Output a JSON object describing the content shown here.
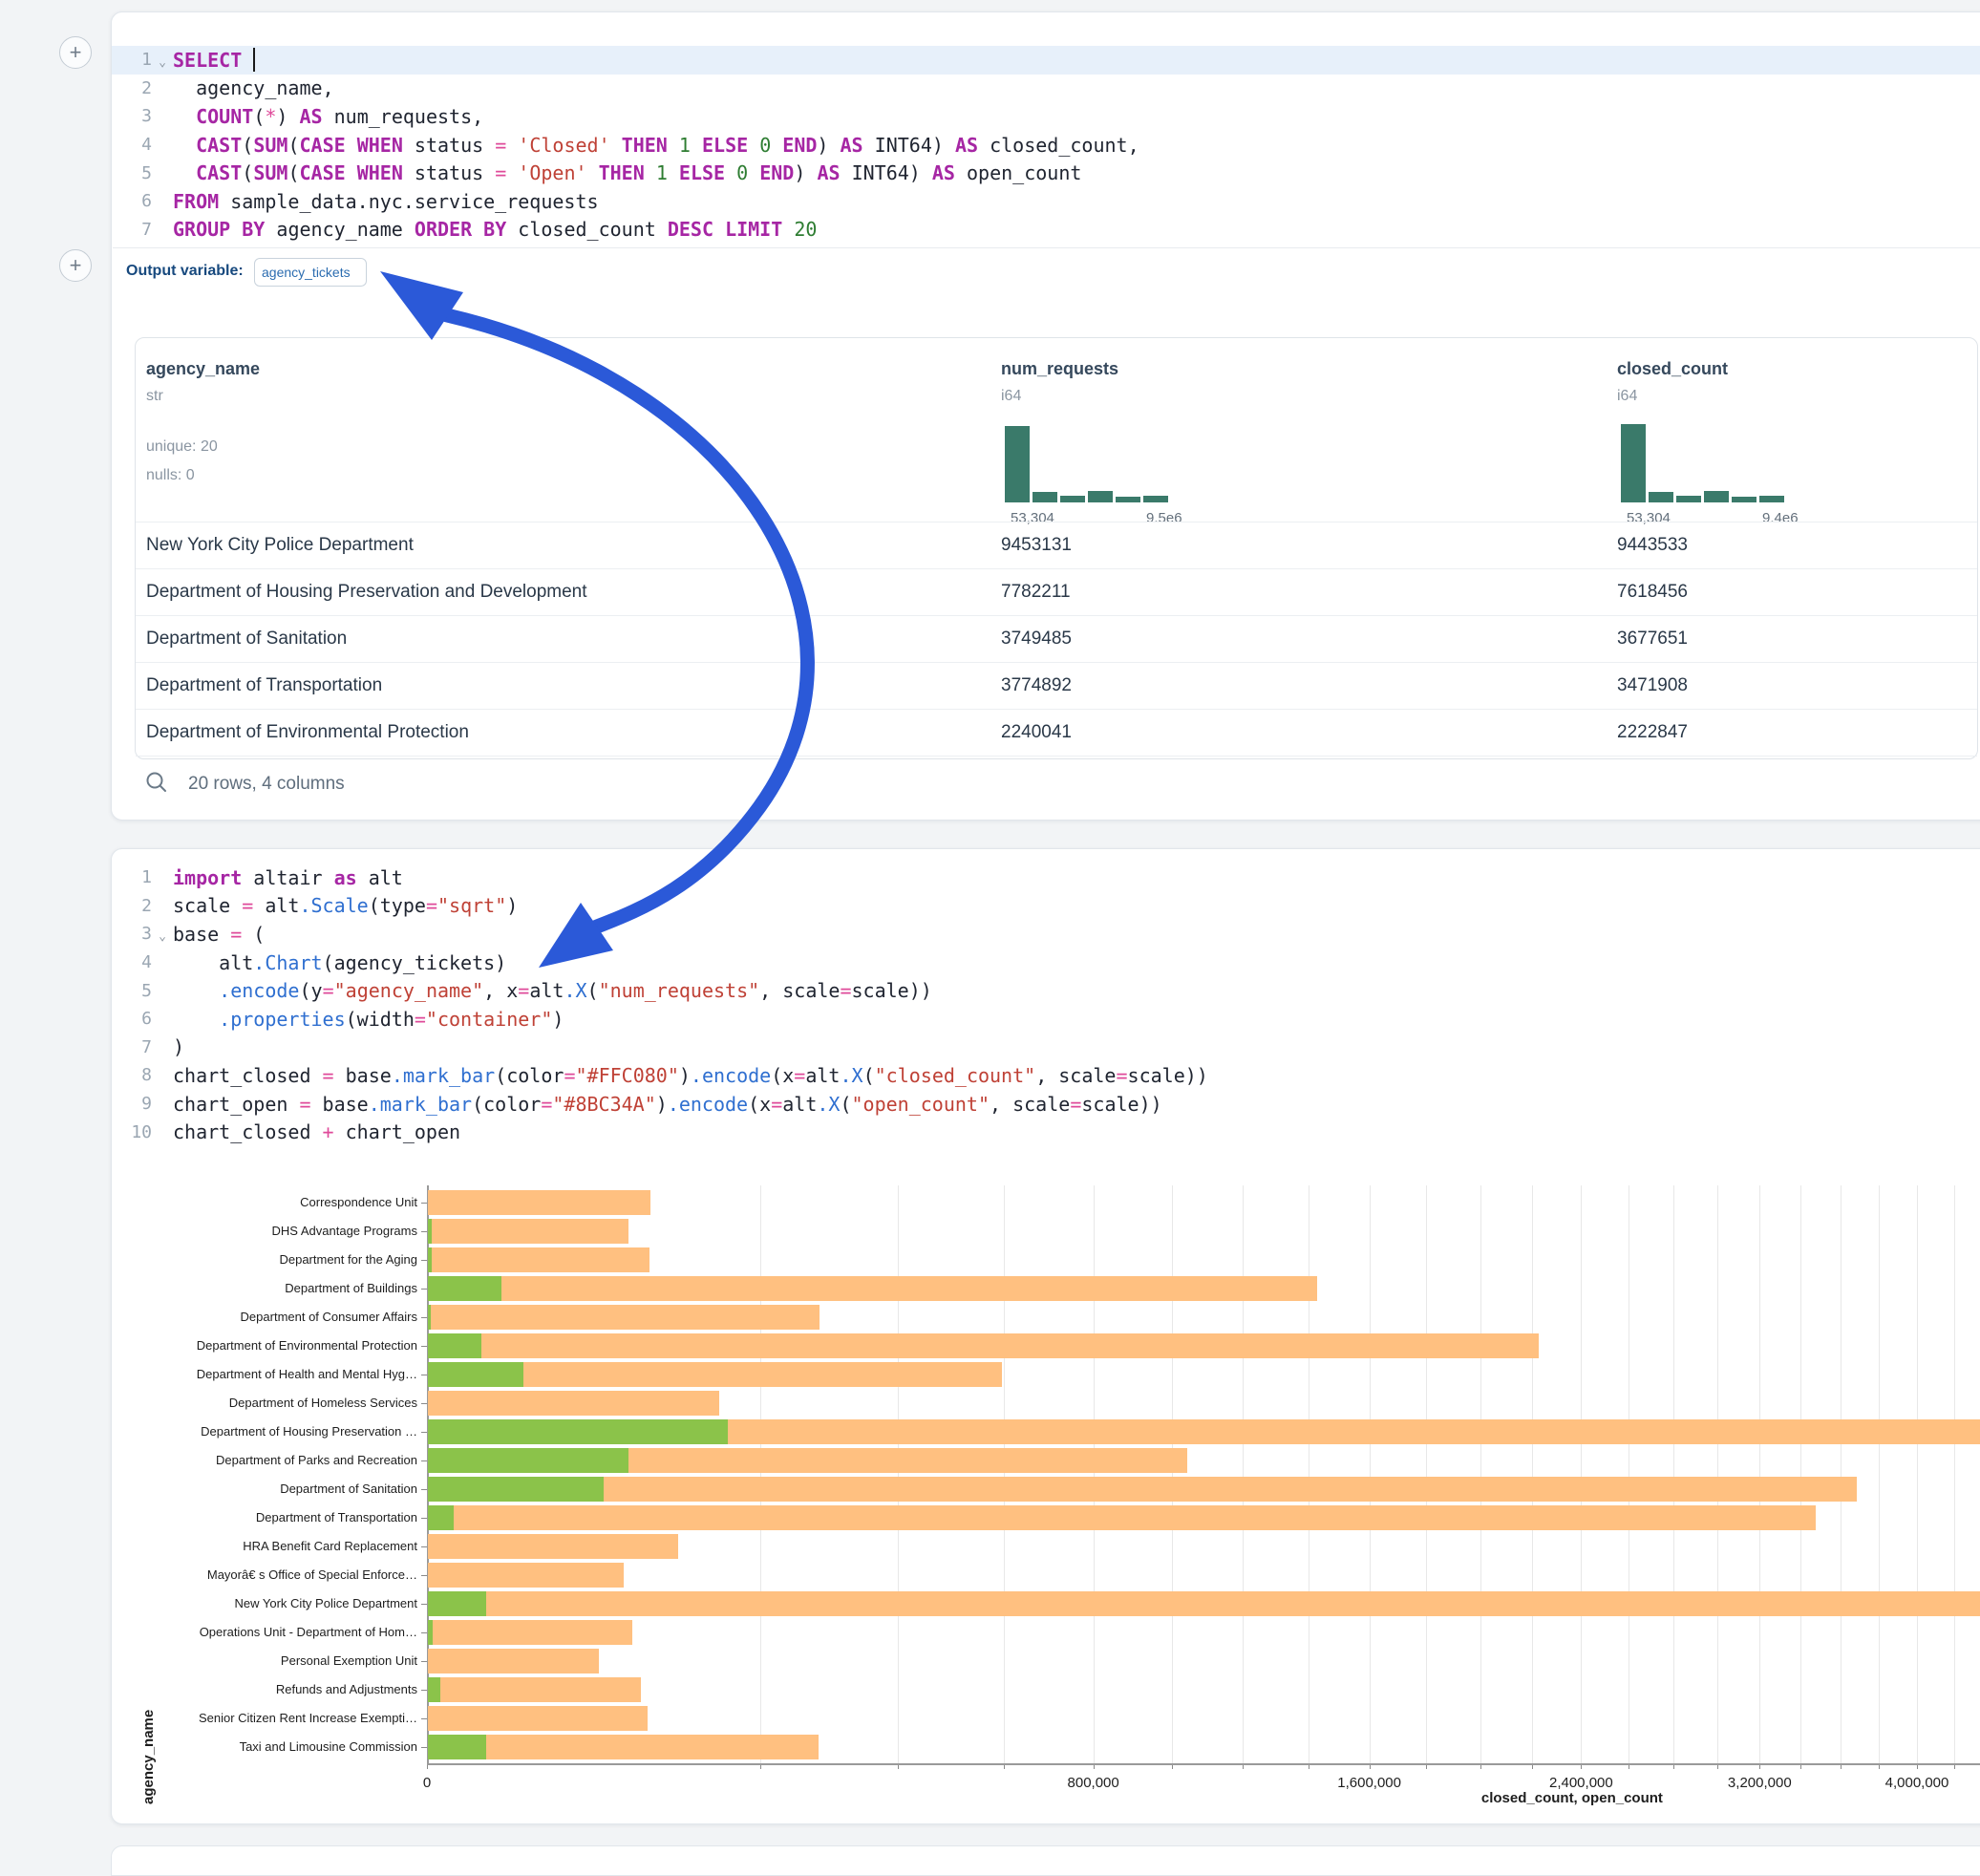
{
  "colors": {
    "keyword": "#a626a4",
    "function": "#2f6fd0",
    "string": "#bf4136",
    "number": "#2e7d32",
    "operator": "#df4a9a",
    "plain": "#1f2430",
    "hist": "#3a7a6a",
    "arrow": "#2b59d8",
    "bar_closed": "#FFC080",
    "bar_open": "#8BC34A"
  },
  "sql_cell": {
    "add_button": "+",
    "lines": [
      {
        "n": "1",
        "fold": "⌄",
        "highlight": true,
        "cursor": true,
        "tokens": [
          [
            "kw",
            "SELECT"
          ],
          [
            "txt",
            " "
          ]
        ]
      },
      {
        "n": "2",
        "tokens": [
          [
            "txt",
            "  agency_name,"
          ]
        ]
      },
      {
        "n": "3",
        "tokens": [
          [
            "txt",
            "  "
          ],
          [
            "kw",
            "COUNT"
          ],
          [
            "txt",
            "("
          ],
          [
            "op",
            "*"
          ],
          [
            "txt",
            ") "
          ],
          [
            "kw",
            "AS"
          ],
          [
            "txt",
            " num_requests,"
          ]
        ]
      },
      {
        "n": "4",
        "tokens": [
          [
            "txt",
            "  "
          ],
          [
            "kw",
            "CAST"
          ],
          [
            "txt",
            "("
          ],
          [
            "kw",
            "SUM"
          ],
          [
            "txt",
            "("
          ],
          [
            "kw",
            "CASE"
          ],
          [
            "txt",
            " "
          ],
          [
            "kw",
            "WHEN"
          ],
          [
            "txt",
            " status "
          ],
          [
            "op",
            "="
          ],
          [
            "txt",
            " "
          ],
          [
            "str",
            "'Closed'"
          ],
          [
            "txt",
            " "
          ],
          [
            "kw",
            "THEN"
          ],
          [
            "txt",
            " "
          ],
          [
            "num",
            "1"
          ],
          [
            "txt",
            " "
          ],
          [
            "kw",
            "ELSE"
          ],
          [
            "txt",
            " "
          ],
          [
            "num",
            "0"
          ],
          [
            "txt",
            " "
          ],
          [
            "kw",
            "END"
          ],
          [
            "txt",
            ") "
          ],
          [
            "kw",
            "AS"
          ],
          [
            "txt",
            " INT64) "
          ],
          [
            "kw",
            "AS"
          ],
          [
            "txt",
            " closed_count,"
          ]
        ]
      },
      {
        "n": "5",
        "tokens": [
          [
            "txt",
            "  "
          ],
          [
            "kw",
            "CAST"
          ],
          [
            "txt",
            "("
          ],
          [
            "kw",
            "SUM"
          ],
          [
            "txt",
            "("
          ],
          [
            "kw",
            "CASE"
          ],
          [
            "txt",
            " "
          ],
          [
            "kw",
            "WHEN"
          ],
          [
            "txt",
            " status "
          ],
          [
            "op",
            "="
          ],
          [
            "txt",
            " "
          ],
          [
            "str",
            "'Open'"
          ],
          [
            "txt",
            " "
          ],
          [
            "kw",
            "THEN"
          ],
          [
            "txt",
            " "
          ],
          [
            "num",
            "1"
          ],
          [
            "txt",
            " "
          ],
          [
            "kw",
            "ELSE"
          ],
          [
            "txt",
            " "
          ],
          [
            "num",
            "0"
          ],
          [
            "txt",
            " "
          ],
          [
            "kw",
            "END"
          ],
          [
            "txt",
            ") "
          ],
          [
            "kw",
            "AS"
          ],
          [
            "txt",
            " INT64) "
          ],
          [
            "kw",
            "AS"
          ],
          [
            "txt",
            " open_count"
          ]
        ]
      },
      {
        "n": "6",
        "tokens": [
          [
            "kw",
            "FROM"
          ],
          [
            "txt",
            " sample_data.nyc.service_requests"
          ]
        ]
      },
      {
        "n": "7",
        "tokens": [
          [
            "kw",
            "GROUP"
          ],
          [
            "txt",
            " "
          ],
          [
            "kw",
            "BY"
          ],
          [
            "txt",
            " agency_name "
          ],
          [
            "kw",
            "ORDER"
          ],
          [
            "txt",
            " "
          ],
          [
            "kw",
            "BY"
          ],
          [
            "txt",
            " closed_count "
          ],
          [
            "kw",
            "DESC"
          ],
          [
            "txt",
            " "
          ],
          [
            "kw",
            "LIMIT"
          ],
          [
            "txt",
            " "
          ],
          [
            "num",
            "20"
          ]
        ]
      }
    ],
    "output_label": "Output variable:",
    "output_variable": "agency_tickets"
  },
  "table": {
    "columns": [
      {
        "name": "agency_name",
        "type": "str",
        "stats": [
          "unique: 20",
          "nulls: 0"
        ]
      },
      {
        "name": "num_requests",
        "type": "i64",
        "hist": [
          80,
          11,
          7,
          12,
          6,
          7
        ],
        "hist_min_label": "53,304",
        "hist_max_label": "9.5e6"
      },
      {
        "name": "closed_count",
        "type": "i64",
        "hist": [
          82,
          11,
          7,
          12,
          6,
          7
        ],
        "hist_min_label": "53,304",
        "hist_max_label": "9.4e6"
      }
    ],
    "rows": [
      [
        "New York City Police Department",
        "9453131",
        "9443533"
      ],
      [
        "Department of Housing Preservation and Development",
        "7782211",
        "7618456"
      ],
      [
        "Department of Sanitation",
        "3749485",
        "3677651"
      ],
      [
        "Department of Transportation",
        "3774892",
        "3471908"
      ],
      [
        "Department of Environmental Protection",
        "2240041",
        "2222847"
      ]
    ],
    "footer": "20 rows, 4 columns"
  },
  "python_cell": {
    "lines": [
      {
        "n": "1",
        "tokens": [
          [
            "kw",
            "import"
          ],
          [
            "txt",
            " altair "
          ],
          [
            "kw",
            "as"
          ],
          [
            "txt",
            " alt"
          ]
        ]
      },
      {
        "n": "2",
        "tokens": [
          [
            "txt",
            "scale "
          ],
          [
            "op",
            "="
          ],
          [
            "txt",
            " alt"
          ],
          [
            "fn",
            ".Scale"
          ],
          [
            "txt",
            "(type"
          ],
          [
            "op",
            "="
          ],
          [
            "str",
            "\"sqrt\""
          ],
          [
            "txt",
            ")"
          ]
        ]
      },
      {
        "n": "3",
        "fold": "⌄",
        "tokens": [
          [
            "txt",
            "base "
          ],
          [
            "op",
            "="
          ],
          [
            "txt",
            " ("
          ]
        ]
      },
      {
        "n": "4",
        "tokens": [
          [
            "txt",
            "    alt"
          ],
          [
            "fn",
            ".Chart"
          ],
          [
            "txt",
            "(agency_tickets)"
          ]
        ]
      },
      {
        "n": "5",
        "tokens": [
          [
            "txt",
            "    "
          ],
          [
            "fn",
            ".encode"
          ],
          [
            "txt",
            "(y"
          ],
          [
            "op",
            "="
          ],
          [
            "str",
            "\"agency_name\""
          ],
          [
            "txt",
            ", x"
          ],
          [
            "op",
            "="
          ],
          [
            "txt",
            "alt"
          ],
          [
            "fn",
            ".X"
          ],
          [
            "txt",
            "("
          ],
          [
            "str",
            "\"num_requests\""
          ],
          [
            "txt",
            ", scale"
          ],
          [
            "op",
            "="
          ],
          [
            "txt",
            "scale))"
          ]
        ]
      },
      {
        "n": "6",
        "tokens": [
          [
            "txt",
            "    "
          ],
          [
            "fn",
            ".properties"
          ],
          [
            "txt",
            "(width"
          ],
          [
            "op",
            "="
          ],
          [
            "str",
            "\"container\""
          ],
          [
            "txt",
            ")"
          ]
        ]
      },
      {
        "n": "7",
        "tokens": [
          [
            "txt",
            ")"
          ]
        ]
      },
      {
        "n": "8",
        "tokens": [
          [
            "txt",
            "chart_closed "
          ],
          [
            "op",
            "="
          ],
          [
            "txt",
            " base"
          ],
          [
            "fn",
            ".mark_bar"
          ],
          [
            "txt",
            "(color"
          ],
          [
            "op",
            "="
          ],
          [
            "str",
            "\"#FFC080\""
          ],
          [
            "txt",
            ")"
          ],
          [
            "fn",
            ".encode"
          ],
          [
            "txt",
            "(x"
          ],
          [
            "op",
            "="
          ],
          [
            "txt",
            "alt"
          ],
          [
            "fn",
            ".X"
          ],
          [
            "txt",
            "("
          ],
          [
            "str",
            "\"closed_count\""
          ],
          [
            "txt",
            ", scale"
          ],
          [
            "op",
            "="
          ],
          [
            "txt",
            "scale))"
          ]
        ]
      },
      {
        "n": "9",
        "tokens": [
          [
            "txt",
            "chart_open "
          ],
          [
            "op",
            "="
          ],
          [
            "txt",
            " base"
          ],
          [
            "fn",
            ".mark_bar"
          ],
          [
            "txt",
            "(color"
          ],
          [
            "op",
            "="
          ],
          [
            "str",
            "\"#8BC34A\""
          ],
          [
            "txt",
            ")"
          ],
          [
            "fn",
            ".encode"
          ],
          [
            "txt",
            "(x"
          ],
          [
            "op",
            "="
          ],
          [
            "txt",
            "alt"
          ],
          [
            "fn",
            ".X"
          ],
          [
            "txt",
            "("
          ],
          [
            "str",
            "\"open_count\""
          ],
          [
            "txt",
            ", scale"
          ],
          [
            "op",
            "="
          ],
          [
            "txt",
            "scale))"
          ]
        ]
      },
      {
        "n": "10",
        "tokens": [
          [
            "txt",
            "chart_closed "
          ],
          [
            "op",
            "+"
          ],
          [
            "txt",
            " chart_open"
          ]
        ]
      }
    ]
  },
  "chart_data": {
    "type": "bar",
    "orientation": "horizontal",
    "x_scale": "sqrt",
    "xlabel": "closed_count, open_count",
    "ylabel": "agency_name",
    "x_tick_values": [
      0,
      800000,
      1600000,
      2400000,
      3200000,
      4000000
    ],
    "x_tick_labels": [
      "0",
      "800,000",
      "1,600,000",
      "2,400,000",
      "3,200,000",
      "4,000,000"
    ],
    "x_minor_tick_step": 200000,
    "x_domain_max": 9450000,
    "grid": true,
    "legend": false,
    "series": [
      {
        "name": "closed_count",
        "color": "#FFC080",
        "values": [
          89000,
          72500,
          88500,
          1425000,
          276000,
          2222847,
          594000,
          153000,
          7618456,
          1039000,
          3677651,
          3471908,
          112800,
          69000,
          9443533,
          75300,
          52700,
          81700,
          87000,
          275000
        ]
      },
      {
        "name": "open_count",
        "color": "#8BC34A",
        "values": [
          0,
          25,
          25,
          9700,
          20,
          5200,
          16400,
          0,
          162000,
          72500,
          55600,
          1200,
          0,
          0,
          6100,
          40,
          0,
          280,
          0,
          6100
        ]
      }
    ],
    "categories": [
      "Correspondence Unit",
      "DHS Advantage Programs",
      "Department for the Aging",
      "Department of Buildings",
      "Department of Consumer Affairs",
      "Department of Environmental Protection",
      "Department of Health and Mental Hyg…",
      "Department of Homeless Services",
      "Department of Housing Preservation …",
      "Department of Parks and Recreation",
      "Department of Sanitation",
      "Department of Transportation",
      "HRA Benefit Card Replacement",
      "Mayorâ€ s Office of Special Enforce…",
      "New York City Police Department",
      "Operations Unit - Department of Hom…",
      "Personal Exemption Unit",
      "Refunds and Adjustments",
      "Senior Citizen Rent Increase Exempti…",
      "Taxi and Limousine Commission"
    ]
  }
}
